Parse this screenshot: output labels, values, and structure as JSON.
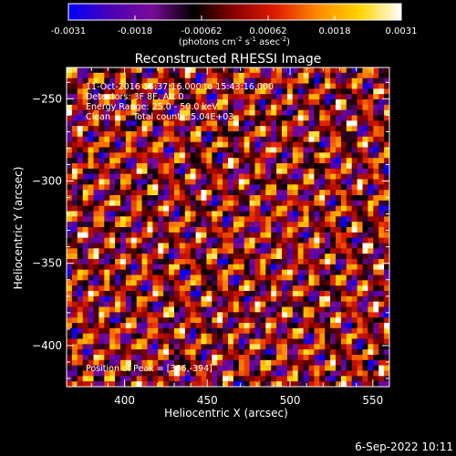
{
  "chart_data": {
    "type": "heatmap",
    "title": "Reconstructed RHESSI Image",
    "xlabel": "Heliocentric X (arcsec)",
    "ylabel": "Heliocentric Y (arcsec)",
    "xlim": [
      365,
      560
    ],
    "ylim": [
      -425,
      -231
    ],
    "x_ticks": [
      400,
      450,
      500,
      550
    ],
    "y_ticks": [
      -250,
      -300,
      -350,
      -400
    ],
    "colorbar": {
      "ticks": [
        "-0.0031",
        "-0.0018",
        "-0.00062",
        "0.00062",
        "0.0018",
        "0.0031"
      ],
      "range": [
        -0.0031,
        0.0031
      ],
      "units_parts": [
        "(photons cm",
        "-2",
        " s",
        "-1",
        " asec",
        "-2",
        ")"
      ],
      "stops": [
        "#0000ff",
        "#4b00b4",
        "#7a0a9a",
        "#000000",
        "#8c0000",
        "#e01e00",
        "#ff8c00",
        "#ffd400",
        "#ffffff"
      ]
    },
    "annotations": {
      "time": "11-Oct-2016 15:37:16.000 to 15:43:16.000",
      "detectors": "Detectors: 3F 8F, Att 0",
      "energy": "Energy Range: 25.0 - 50.0 keV",
      "clean": "Clean",
      "counts": "Total counts: 5.04E+03",
      "peak": "Position of Peak = [386,-394]"
    },
    "grid": false
  },
  "footer": {
    "timestamp": "6-Sep-2022 10:11"
  }
}
